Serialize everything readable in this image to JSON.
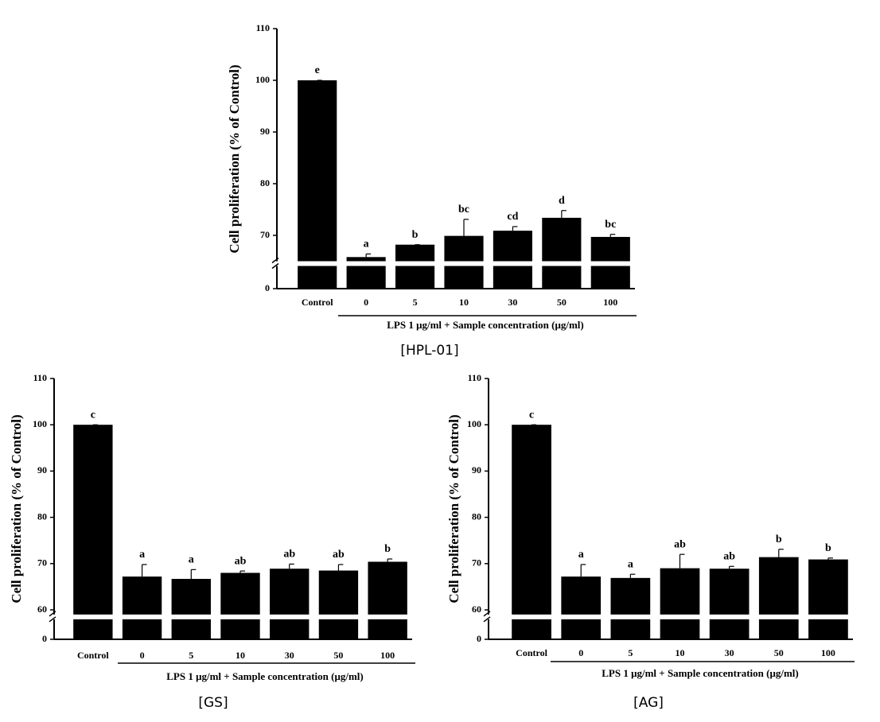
{
  "chart_data": [
    {
      "type": "bar",
      "caption": "[HPL-01]",
      "y_label": "Cell proliferation (% of Control)",
      "x_label": "LPS 1 μg/ml + Sample concentration (μg/ml)",
      "categories": [
        "Control",
        "0",
        "5",
        "10",
        "30",
        "50",
        "100"
      ],
      "values": [
        100,
        65.8,
        68.2,
        69.9,
        70.9,
        73.4,
        69.7
      ],
      "errors": [
        0,
        0.6,
        0,
        3.2,
        0.8,
        1.4,
        0.5
      ],
      "annotations": [
        "e",
        "a",
        "b",
        "bc",
        "cd",
        "d",
        "bc"
      ],
      "color": "#000000",
      "ylim": [
        0,
        110
      ],
      "ybreak": 65,
      "yticks": [
        0,
        70,
        80,
        90,
        100,
        110
      ]
    },
    {
      "type": "bar",
      "caption": "[GS]",
      "y_label": "Cell proliferation (% of Control)",
      "x_label": "LPS 1 μg/ml + Sample concentration (μg/ml)",
      "categories": [
        "Control",
        "0",
        "5",
        "10",
        "30",
        "50",
        "100"
      ],
      "values": [
        100,
        67.2,
        66.7,
        68.0,
        68.9,
        68.5,
        70.4
      ],
      "errors": [
        0,
        2.6,
        2.0,
        0.4,
        1.0,
        1.3,
        0.6
      ],
      "annotations": [
        "c",
        "a",
        "a",
        "ab",
        "ab",
        "ab",
        "b"
      ],
      "color": "#000000",
      "ylim": [
        0,
        110
      ],
      "ybreak": 59,
      "yticks": [
        0,
        60,
        70,
        80,
        90,
        100,
        110
      ]
    },
    {
      "type": "bar",
      "caption": "[AG]",
      "y_label": "Cell proliferation (% of Control)",
      "x_label": "LPS 1 μg/ml + Sample concentration (μg/ml)",
      "categories": [
        "Control",
        "0",
        "5",
        "10",
        "30",
        "50",
        "100"
      ],
      "values": [
        100,
        67.2,
        66.9,
        69.0,
        68.9,
        71.4,
        70.9
      ],
      "errors": [
        0,
        2.6,
        0.8,
        3.0,
        0.5,
        1.7,
        0.3
      ],
      "annotations": [
        "c",
        "a",
        "a",
        "ab",
        "ab",
        "b",
        "b"
      ],
      "color": "#000000",
      "ylim": [
        0,
        110
      ],
      "ybreak": 59,
      "yticks": [
        0,
        60,
        70,
        80,
        90,
        100,
        110
      ]
    }
  ]
}
